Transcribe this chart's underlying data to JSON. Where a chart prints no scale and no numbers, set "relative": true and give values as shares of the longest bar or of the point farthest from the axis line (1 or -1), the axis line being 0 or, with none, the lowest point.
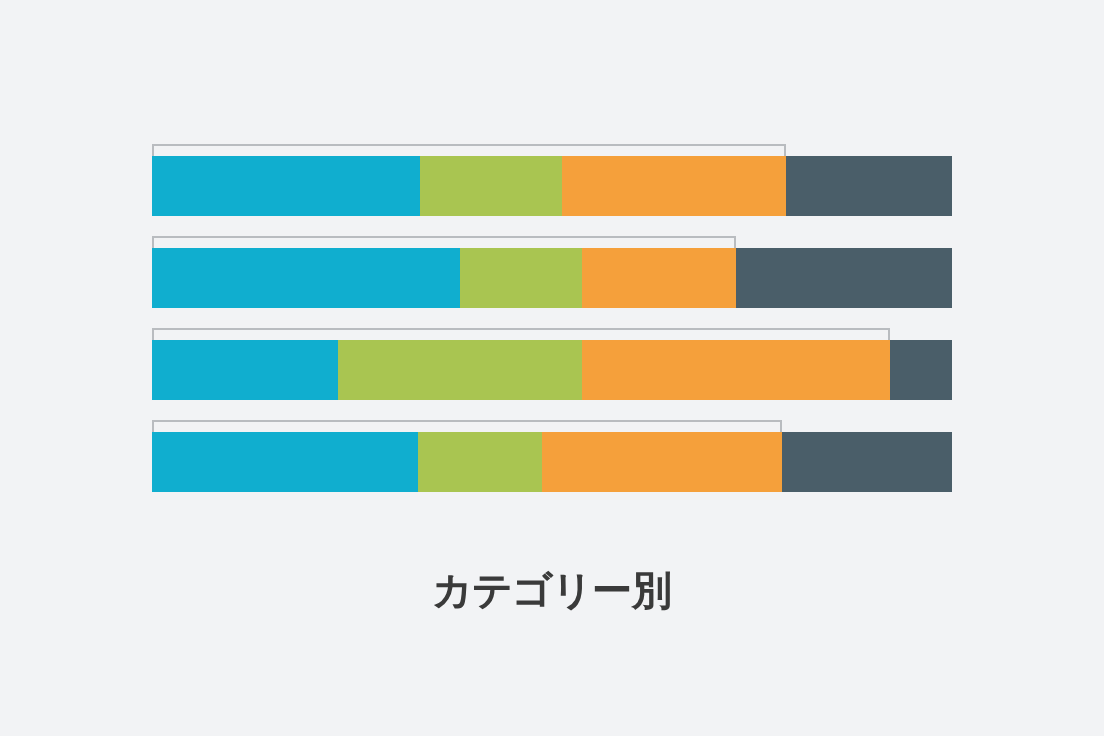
{
  "chart_data": {
    "type": "bar",
    "orientation": "horizontal",
    "stacked": true,
    "relative": true,
    "title": "カテゴリー別",
    "categories": [
      null,
      null,
      null,
      null
    ],
    "series": [
      {
        "color": "#10aecf",
        "values": [
          0.335,
          0.385,
          0.2325,
          0.3325
        ]
      },
      {
        "color": "#a9c551",
        "values": [
          0.1775,
          0.1525,
          0.305,
          0.155
        ]
      },
      {
        "color": "#f5a03b",
        "values": [
          0.28,
          0.1925,
          0.385,
          0.3
        ]
      },
      {
        "color": "#4a5e69",
        "values": [
          0.2075,
          0.27,
          0.0775,
          0.2125
        ]
      }
    ]
  }
}
